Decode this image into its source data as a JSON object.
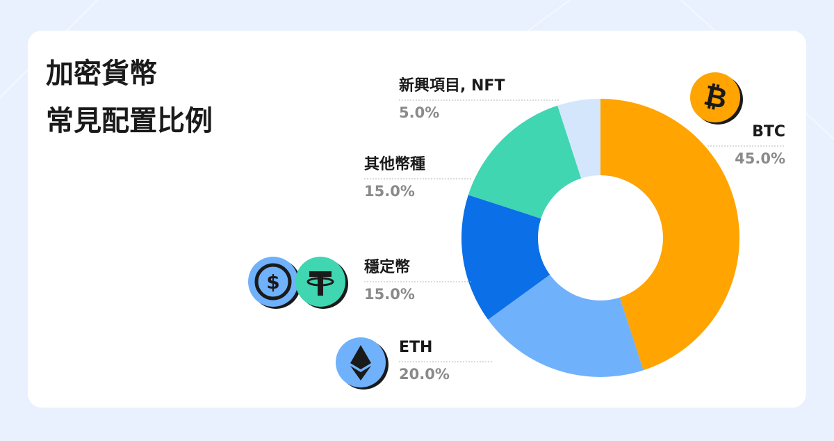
{
  "chart_data": {
    "type": "donut",
    "title": [
      "加密貨幣",
      "常見配置比例"
    ],
    "categories": [
      "BTC",
      "ETH",
      "穩定幣",
      "其他幣種",
      "新興項目, NFT"
    ],
    "values": [
      45,
      20,
      15,
      15,
      5
    ],
    "value_labels": [
      "45.0%",
      "20.0%",
      "15.0%",
      "15.0%",
      "5.0%"
    ],
    "colors": [
      "#ffa400",
      "#6fb1fb",
      "#0b6fe8",
      "#3fd6b1",
      "#d3e6fb"
    ]
  }
}
